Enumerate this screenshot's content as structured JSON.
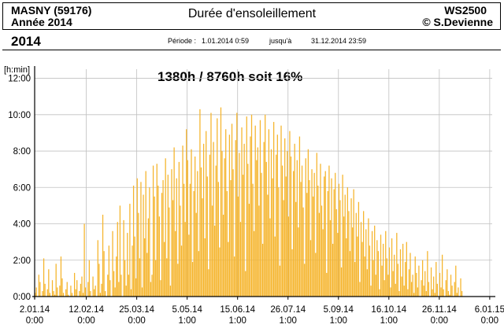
{
  "header": {
    "station": "MASNY (59176)",
    "year_label": "Année  2014",
    "title": "Durée d'ensoleillement",
    "device": "WS2500",
    "author": "© S.Devienne",
    "year_big": "2014",
    "period_label": "Période :",
    "period_start": "1.01.2014     0:59",
    "period_mid": "jusqu'à",
    "period_end": "31.12.2014    23:59"
  },
  "colors": {
    "bar": "#f5b52e",
    "grid": "#c0c0c0"
  },
  "chart_data": {
    "type": "bar",
    "title": "Durée d'ensoleillement",
    "annotation": "1380h / 8760h  soit 16%",
    "ylabel": "[h:min]",
    "ylim": [
      0,
      12.5
    ],
    "y_ticks": [
      "0:00",
      "2:00",
      "4:00",
      "6:00",
      "8:00",
      "10:00",
      "12:00"
    ],
    "y_tick_values": [
      0,
      2,
      4,
      6,
      8,
      10,
      12
    ],
    "x_tick_days": [
      1,
      43,
      84,
      125,
      166,
      207,
      248,
      289,
      330,
      371
    ],
    "x_tick_labels": [
      [
        "2.01.14",
        "0:00"
      ],
      [
        "12.02.14",
        "0:00"
      ],
      [
        "25.03.14",
        "0:00"
      ],
      [
        "5.05.14",
        "1:00"
      ],
      [
        "15.06.14",
        "1:00"
      ],
      [
        "26.07.14",
        "1:00"
      ],
      [
        "5.09.14",
        "1:00"
      ],
      [
        "16.10.14",
        "1:00"
      ],
      [
        "26.11.14",
        "0:00"
      ],
      [
        "6.01.15",
        "0:00"
      ]
    ],
    "unit": "hours per day",
    "x": "day of year 2014 (1-365)",
    "values": [
      0.2,
      0.5,
      0,
      1.2,
      0.8,
      0,
      0.3,
      2.1,
      0.7,
      0,
      0.4,
      1.5,
      0.2,
      0,
      0.9,
      0.3,
      0.1,
      1.8,
      0.5,
      0,
      0.6,
      2.2,
      1.0,
      0.2,
      0,
      0.4,
      0.8,
      0.1,
      0,
      0.6,
      0.2,
      0,
      1.3,
      0.4,
      0.9,
      0,
      0.3,
      0.7,
      1.1,
      0.2,
      4.0,
      0.5,
      0,
      0.8,
      2.0,
      0.3,
      0,
      1.1,
      0.4,
      0.6,
      0,
      3.1,
      1.8,
      0.2,
      0.7,
      4.5,
      2.5,
      0.3,
      0,
      1.2,
      2.8,
      0.9,
      0,
      3.6,
      1.4,
      0.5,
      2.2,
      4.1,
      0.8,
      5.0,
      1.2,
      0,
      4.2,
      2.0,
      0.6,
      3.5,
      1.2,
      5.1,
      0.4,
      2.8,
      6.1,
      3.3,
      1.0,
      6.5,
      4.6,
      2.1,
      6.3,
      0.5,
      5.6,
      3.2,
      6.9,
      2.4,
      4.3,
      6.0,
      0.8,
      1.2,
      7.2,
      5.5,
      2.0,
      7.3,
      6.1,
      4.4,
      0.9,
      5.7,
      6.4,
      3.0,
      7.6,
      2.1,
      6.7,
      4.9,
      0.6,
      7.0,
      5.3,
      8.2,
      3.6,
      6.5,
      1.8,
      7.4,
      5.0,
      2.8,
      8.3,
      6.2,
      4.1,
      9.2,
      7.5,
      3.4,
      6.2,
      8.1,
      1.9,
      5.8,
      7.7,
      4.6,
      6.9,
      2.5,
      10.3,
      7.1,
      5.4,
      8.4,
      3.2,
      9.1,
      6.6,
      1.5,
      7.8,
      10.1,
      5.0,
      8.5,
      3.9,
      7.2,
      9.8,
      6.3,
      2.7,
      10.4,
      8.0,
      4.5,
      7.6,
      9.2,
      5.8,
      3.0,
      8.9,
      6.4,
      9.5,
      7.0,
      2.2,
      8.6,
      10.1,
      5.5,
      7.9,
      4.1,
      9.3,
      6.7,
      8.4,
      1.4,
      9.9,
      7.3,
      5.1,
      8.8,
      10.0,
      6.2,
      3.6,
      9.4,
      7.5,
      8.2,
      5.0,
      9.7,
      6.8,
      2.9,
      8.5,
      10.0,
      7.4,
      5.6,
      9.2,
      4.3,
      8.1,
      6.5,
      9.6,
      3.3,
      7.8,
      8.9,
      6.0,
      1.7,
      9.4,
      7.2,
      5.3,
      8.7,
      6.6,
      8.0,
      4.4,
      9.1,
      7.7,
      2.6,
      6.9,
      8.4,
      5.2,
      7.5,
      3.8,
      8.8,
      6.3,
      7.2,
      4.9,
      1.8,
      7.6,
      5.7,
      8.1,
      6.4,
      3.1,
      7.0,
      5.5,
      6.8,
      2.4,
      7.9,
      6.1,
      4.6,
      7.3,
      5.0,
      3.7,
      6.6,
      6.9,
      1.3,
      5.8,
      7.2,
      4.2,
      6.5,
      2.9,
      5.9,
      6.8,
      4.8,
      3.5,
      6.2,
      5.3,
      1.6,
      6.7,
      4.4,
      5.6,
      3.2,
      6.0,
      4.7,
      2.5,
      5.4,
      3.8,
      5.9,
      1.9,
      4.6,
      3.3,
      5.2,
      0.8,
      4.1,
      3.0,
      4.7,
      2.2,
      3.7,
      1.5,
      4.3,
      2.8,
      0.6,
      3.6,
      2.0,
      3.9,
      1.2,
      3.1,
      2.5,
      0.4,
      3.4,
      1.7,
      2.9,
      0.9,
      3.6,
      2.1,
      1.2,
      2.7,
      0.5,
      3.2,
      1.4,
      2.3,
      0.7,
      3.5,
      1.8,
      0.3,
      2.6,
      1.1,
      2.9,
      0.6,
      1.9,
      3.0,
      0.4,
      1.5,
      2.4,
      0.8,
      1.2,
      0.2,
      2.2,
      1.3,
      0.5,
      1.7,
      0,
      0.9,
      2.0,
      0.6,
      1.4,
      0.3,
      2.5,
      0.8,
      0,
      1.6,
      0.4,
      1.1,
      0.2,
      1.9,
      0.7,
      0,
      1.3,
      0.5,
      2.3,
      0.4,
      0,
      0.9,
      1.5,
      0.3,
      0.1,
      1.2,
      0.6,
      0,
      0.8,
      1.7,
      0.2,
      0.5,
      0,
      1.0,
      0.3
    ]
  }
}
